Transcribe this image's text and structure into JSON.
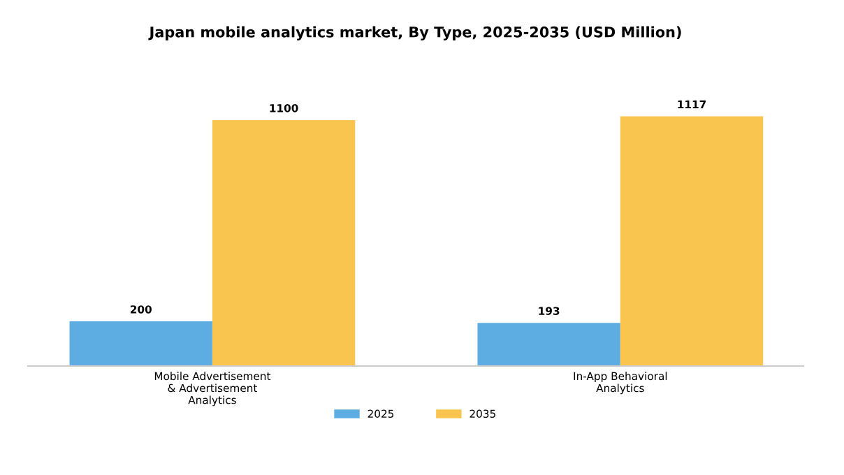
{
  "chart_data": {
    "type": "bar",
    "title": "Japan mobile analytics market, By Type, 2025-2035 (USD Million)",
    "categories": [
      "Mobile Advertisement\n& Advertisement\nAnalytics",
      "In-App Behavioral\nAnalytics"
    ],
    "series": [
      {
        "name": "2025",
        "color": "#5dade2",
        "values": [
          200,
          193
        ]
      },
      {
        "name": "2035",
        "color": "#f9c54e",
        "values": [
          1100,
          1117
        ]
      }
    ],
    "data_labels": true,
    "legend": "bottom",
    "grid": false
  }
}
